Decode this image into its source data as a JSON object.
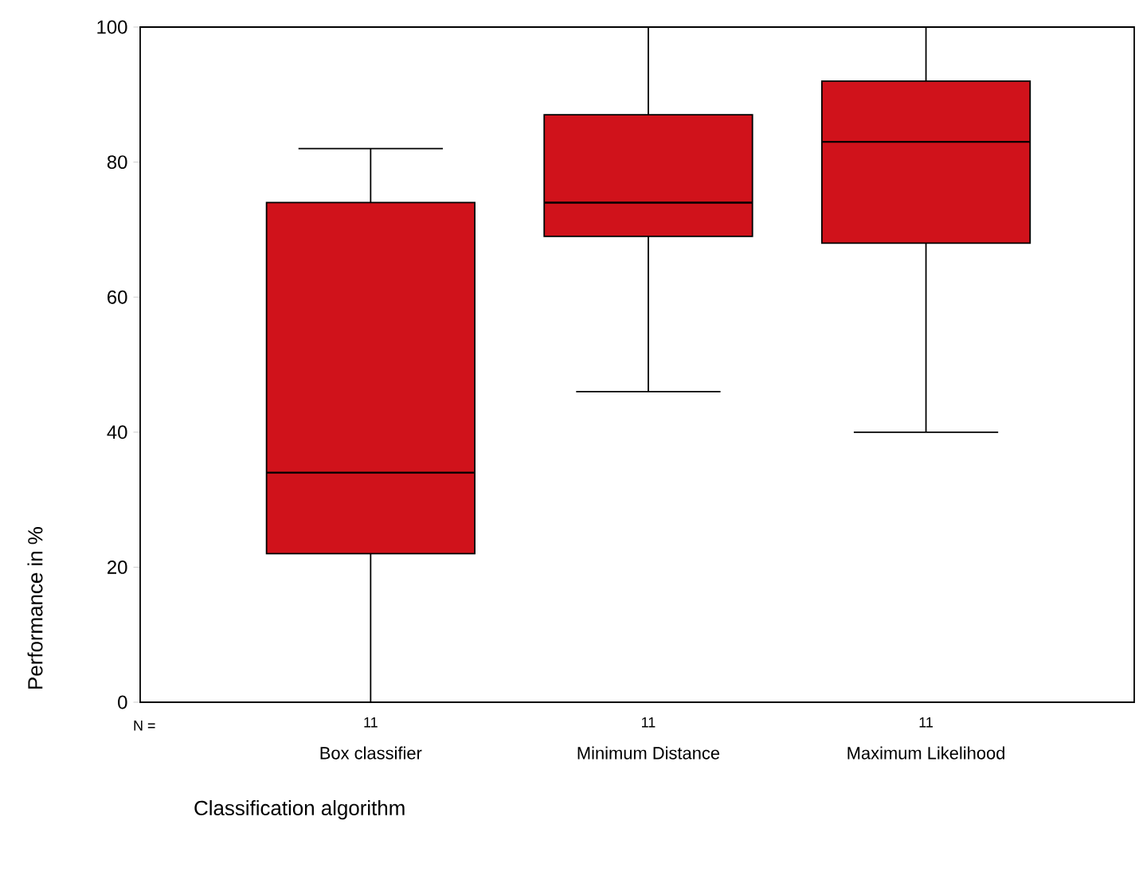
{
  "chart_data": {
    "type": "box",
    "categories": [
      "Box classifier",
      "Minimum Distance",
      "Maximum Likelihood"
    ],
    "boxes": [
      {
        "low": 0,
        "q1": 22,
        "median": 34,
        "q3": 74,
        "high": 82
      },
      {
        "low": 46,
        "q1": 69,
        "median": 74,
        "q3": 87,
        "high": 100
      },
      {
        "low": 40,
        "q1": 68,
        "median": 83,
        "q3": 92,
        "high": 100
      }
    ],
    "color": "#d0121b",
    "ylim": [
      0,
      100
    ],
    "yticks": [
      0,
      20,
      40,
      60,
      80,
      100
    ],
    "xlabel": "Classification algorithm",
    "ylabel": "Performance in %",
    "annotations": [
      "N =",
      "11",
      "11",
      "11"
    ]
  }
}
